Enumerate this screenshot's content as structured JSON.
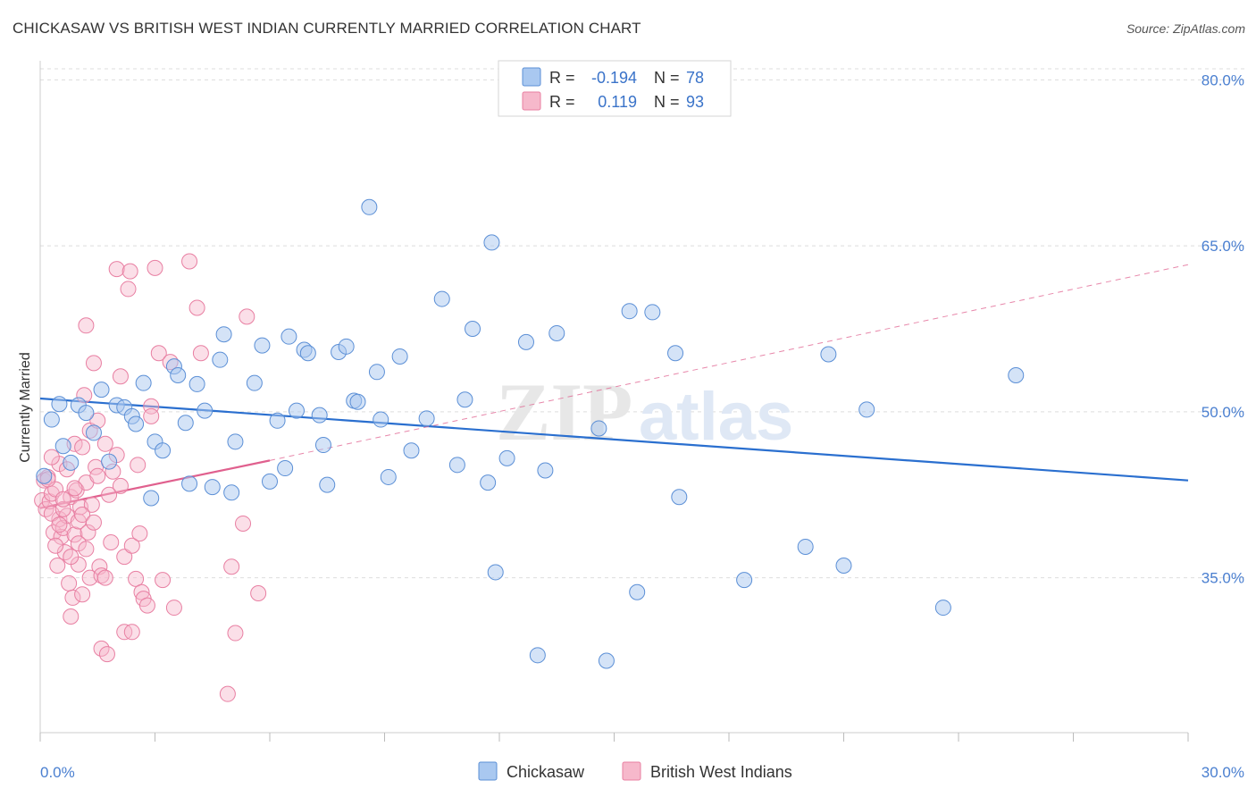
{
  "header": {
    "title": "CHICKASAW VS BRITISH WEST INDIAN CURRENTLY MARRIED CORRELATION CHART",
    "source": "Source: ZipAtlas.com"
  },
  "watermark": {
    "zip": "ZIP",
    "atlas": "atlas"
  },
  "legend": {
    "r_label": "R =",
    "n_label": "N =",
    "rows": [
      {
        "r": "-0.194",
        "n": "78",
        "color": "#a9c8f0"
      },
      {
        "r": "0.119",
        "n": "93",
        "color": "#f6b8cb"
      }
    ]
  },
  "bottom_legend": [
    {
      "label": "Chickasaw",
      "color": "#a9c8f0"
    },
    {
      "label": "British West Indians",
      "color": "#f6b8cb"
    }
  ],
  "colors": {
    "blue_fill": "#a9c8f0",
    "blue_stroke": "#5b8fd6",
    "blue_line": "#2a6fcf",
    "pink_fill": "#f6b8cb",
    "pink_stroke": "#e87fa2",
    "pink_line": "#e0608e",
    "tick_color": "#4a7fd0",
    "grid": "#dddddd"
  },
  "chart_data": {
    "type": "scatter",
    "title": "CHICKASAW VS BRITISH WEST INDIAN CURRENTLY MARRIED CORRELATION CHART",
    "xlabel": "",
    "ylabel": "Currently Married",
    "xlim": [
      0,
      30
    ],
    "ylim": [
      21,
      81
    ],
    "x_tick_labels": [
      "0.0%",
      "30.0%"
    ],
    "y_ticks": [
      35,
      50,
      65,
      80
    ],
    "y_tick_labels": [
      "35.0%",
      "50.0%",
      "65.0%",
      "80.0%"
    ],
    "grid": true,
    "legend_position": "top-center",
    "series": [
      {
        "name": "Chickasaw",
        "r": -0.194,
        "n": 78,
        "trend": {
          "x": [
            0,
            30
          ],
          "y": [
            51.2,
            43.8
          ],
          "style": "solid"
        },
        "points": [
          [
            0.1,
            44.2
          ],
          [
            0.3,
            49.3
          ],
          [
            0.5,
            50.7
          ],
          [
            0.6,
            46.9
          ],
          [
            0.8,
            45.4
          ],
          [
            1.0,
            50.6
          ],
          [
            1.2,
            49.9
          ],
          [
            1.4,
            48.1
          ],
          [
            1.6,
            52.0
          ],
          [
            1.8,
            45.5
          ],
          [
            2.0,
            50.6
          ],
          [
            2.2,
            50.4
          ],
          [
            2.4,
            49.6
          ],
          [
            2.5,
            48.9
          ],
          [
            2.7,
            52.6
          ],
          [
            2.9,
            42.2
          ],
          [
            3.0,
            47.3
          ],
          [
            3.2,
            46.5
          ],
          [
            3.5,
            54.1
          ],
          [
            3.6,
            53.3
          ],
          [
            3.8,
            49.0
          ],
          [
            3.9,
            43.5
          ],
          [
            4.1,
            52.5
          ],
          [
            4.3,
            50.1
          ],
          [
            4.5,
            43.2
          ],
          [
            4.7,
            54.7
          ],
          [
            4.8,
            57.0
          ],
          [
            5.0,
            42.7
          ],
          [
            5.1,
            47.3
          ],
          [
            5.6,
            52.6
          ],
          [
            5.8,
            56.0
          ],
          [
            6.0,
            43.7
          ],
          [
            6.2,
            49.2
          ],
          [
            6.4,
            44.9
          ],
          [
            6.5,
            56.8
          ],
          [
            6.7,
            50.1
          ],
          [
            6.9,
            55.6
          ],
          [
            7.0,
            55.3
          ],
          [
            7.3,
            49.7
          ],
          [
            7.4,
            47.0
          ],
          [
            7.5,
            43.4
          ],
          [
            7.8,
            55.4
          ],
          [
            8.0,
            55.9
          ],
          [
            8.2,
            51.0
          ],
          [
            8.3,
            50.9
          ],
          [
            8.6,
            68.5
          ],
          [
            8.8,
            53.6
          ],
          [
            8.9,
            49.3
          ],
          [
            9.1,
            44.1
          ],
          [
            9.4,
            55.0
          ],
          [
            9.7,
            46.5
          ],
          [
            10.1,
            49.4
          ],
          [
            10.5,
            60.2
          ],
          [
            10.9,
            45.2
          ],
          [
            11.1,
            51.1
          ],
          [
            11.3,
            57.5
          ],
          [
            11.7,
            43.6
          ],
          [
            11.8,
            65.3
          ],
          [
            11.9,
            35.5
          ],
          [
            12.2,
            45.8
          ],
          [
            12.7,
            56.3
          ],
          [
            13.0,
            28.0
          ],
          [
            13.2,
            44.7
          ],
          [
            13.5,
            57.1
          ],
          [
            14.6,
            48.5
          ],
          [
            14.8,
            27.5
          ],
          [
            15.4,
            59.1
          ],
          [
            15.6,
            33.7
          ],
          [
            16.0,
            59.0
          ],
          [
            16.6,
            55.3
          ],
          [
            16.7,
            42.3
          ],
          [
            18.4,
            34.8
          ],
          [
            20.0,
            37.8
          ],
          [
            20.6,
            55.2
          ],
          [
            21.0,
            36.1
          ],
          [
            21.6,
            50.2
          ],
          [
            23.6,
            32.3
          ],
          [
            25.5,
            53.3
          ]
        ]
      },
      {
        "name": "British West Indians",
        "r": 0.119,
        "n": 93,
        "trend": {
          "x": [
            0,
            6
          ],
          "y": [
            41.3,
            45.6
          ],
          "style": "solid",
          "extended": {
            "x": [
              6,
              30
            ],
            "y": [
              45.6,
              63.3
            ],
            "style": "dashed"
          }
        },
        "points": [
          [
            0.05,
            42.0
          ],
          [
            0.1,
            43.8
          ],
          [
            0.15,
            41.2
          ],
          [
            0.2,
            44.1
          ],
          [
            0.25,
            41.9
          ],
          [
            0.3,
            42.6
          ],
          [
            0.35,
            39.1
          ],
          [
            0.4,
            43.0
          ],
          [
            0.45,
            36.1
          ],
          [
            0.5,
            45.3
          ],
          [
            0.5,
            40.3
          ],
          [
            0.55,
            38.7
          ],
          [
            0.6,
            39.5
          ],
          [
            0.65,
            37.3
          ],
          [
            0.7,
            40.6
          ],
          [
            0.75,
            34.5
          ],
          [
            0.8,
            31.5
          ],
          [
            0.8,
            42.3
          ],
          [
            0.85,
            33.2
          ],
          [
            0.9,
            47.1
          ],
          [
            0.9,
            38.9
          ],
          [
            0.95,
            42.9
          ],
          [
            1.0,
            36.2
          ],
          [
            1.0,
            40.1
          ],
          [
            1.05,
            41.4
          ],
          [
            1.1,
            33.5
          ],
          [
            1.1,
            46.8
          ],
          [
            1.15,
            51.5
          ],
          [
            1.2,
            43.6
          ],
          [
            1.2,
            57.8
          ],
          [
            1.25,
            39.1
          ],
          [
            1.3,
            48.3
          ],
          [
            1.3,
            35.0
          ],
          [
            1.35,
            41.6
          ],
          [
            1.4,
            54.4
          ],
          [
            1.45,
            45.0
          ],
          [
            1.5,
            49.2
          ],
          [
            1.5,
            44.2
          ],
          [
            1.55,
            36.0
          ],
          [
            1.6,
            35.2
          ],
          [
            1.6,
            28.6
          ],
          [
            1.7,
            47.1
          ],
          [
            1.7,
            35.0
          ],
          [
            1.75,
            28.1
          ],
          [
            1.8,
            42.5
          ],
          [
            1.85,
            38.2
          ],
          [
            1.9,
            44.6
          ],
          [
            2.0,
            46.1
          ],
          [
            2.0,
            62.9
          ],
          [
            2.1,
            53.2
          ],
          [
            2.1,
            43.3
          ],
          [
            2.2,
            36.9
          ],
          [
            2.2,
            30.1
          ],
          [
            2.3,
            61.1
          ],
          [
            2.35,
            62.7
          ],
          [
            2.4,
            30.1
          ],
          [
            2.4,
            37.9
          ],
          [
            2.5,
            34.9
          ],
          [
            2.55,
            45.2
          ],
          [
            2.6,
            39.0
          ],
          [
            2.65,
            33.7
          ],
          [
            2.7,
            33.1
          ],
          [
            2.8,
            32.5
          ],
          [
            2.9,
            50.5
          ],
          [
            2.9,
            49.6
          ],
          [
            3.0,
            63.0
          ],
          [
            3.1,
            55.3
          ],
          [
            3.2,
            34.8
          ],
          [
            3.4,
            54.5
          ],
          [
            3.5,
            32.3
          ],
          [
            3.9,
            63.6
          ],
          [
            4.1,
            59.4
          ],
          [
            4.2,
            55.3
          ],
          [
            4.9,
            24.5
          ],
          [
            5.0,
            36.0
          ],
          [
            5.1,
            30.0
          ],
          [
            5.3,
            39.9
          ],
          [
            5.4,
            58.6
          ],
          [
            5.7,
            33.6
          ],
          [
            0.3,
            40.8
          ],
          [
            0.4,
            37.9
          ],
          [
            0.6,
            41.2
          ],
          [
            0.7,
            44.8
          ],
          [
            0.8,
            36.9
          ],
          [
            1.0,
            38.1
          ],
          [
            1.1,
            40.7
          ],
          [
            1.2,
            37.6
          ],
          [
            0.2,
            43.9
          ],
          [
            0.3,
            45.9
          ],
          [
            0.5,
            39.8
          ],
          [
            0.6,
            42.1
          ],
          [
            0.9,
            43.1
          ],
          [
            1.4,
            40.0
          ]
        ]
      }
    ]
  }
}
